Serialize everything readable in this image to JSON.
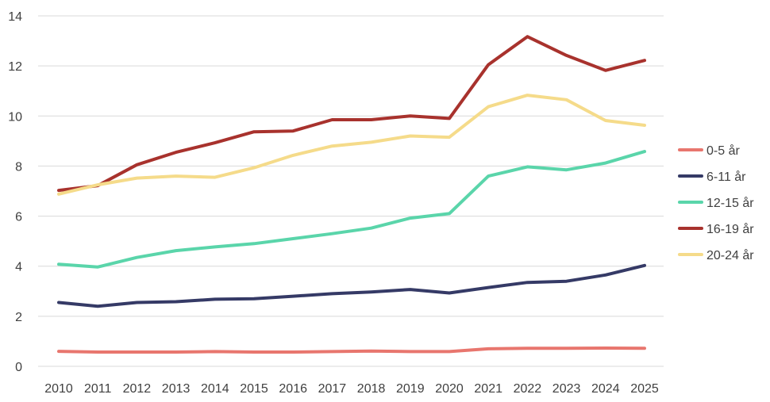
{
  "chart_data": {
    "type": "line",
    "title": "",
    "xlabel": "",
    "ylabel": "",
    "x": [
      "2010",
      "2011",
      "2012",
      "2013",
      "2014",
      "2015",
      "2016",
      "2017",
      "2018",
      "2019",
      "2020",
      "2021",
      "2022",
      "2023",
      "2024",
      "2025"
    ],
    "ylim": [
      0,
      14
    ],
    "yticks": [
      "0",
      "2",
      "4",
      "6",
      "8",
      "10",
      "12",
      "14"
    ],
    "grid": "horizontal",
    "legend_position": "right",
    "series": [
      {
        "name": "0-5 år",
        "color": "#e8766e",
        "values": [
          0.6,
          0.57,
          0.57,
          0.57,
          0.59,
          0.57,
          0.57,
          0.59,
          0.61,
          0.59,
          0.59,
          0.7,
          0.72,
          0.72,
          0.73,
          0.72
        ]
      },
      {
        "name": "6-11 år",
        "color": "#353a66",
        "values": [
          2.55,
          2.4,
          2.55,
          2.58,
          2.68,
          2.7,
          2.8,
          2.9,
          2.97,
          3.07,
          2.93,
          3.15,
          3.35,
          3.4,
          3.65,
          4.03
        ]
      },
      {
        "name": "12-15 år",
        "color": "#5ad5aa",
        "values": [
          4.08,
          3.97,
          4.35,
          4.62,
          4.77,
          4.9,
          5.1,
          5.3,
          5.52,
          5.92,
          6.1,
          7.6,
          7.97,
          7.85,
          8.12,
          8.58
        ]
      },
      {
        "name": "16-19 år",
        "color": "#a8322d",
        "values": [
          7.03,
          7.22,
          8.05,
          8.55,
          8.93,
          9.37,
          9.4,
          9.85,
          9.85,
          10.0,
          9.9,
          12.05,
          13.17,
          12.42,
          11.82,
          12.22
        ]
      },
      {
        "name": "20-24 år",
        "color": "#f5db8a",
        "values": [
          6.88,
          7.25,
          7.52,
          7.6,
          7.55,
          7.93,
          8.43,
          8.8,
          8.95,
          9.2,
          9.15,
          10.37,
          10.83,
          10.65,
          9.82,
          9.63
        ]
      }
    ]
  }
}
